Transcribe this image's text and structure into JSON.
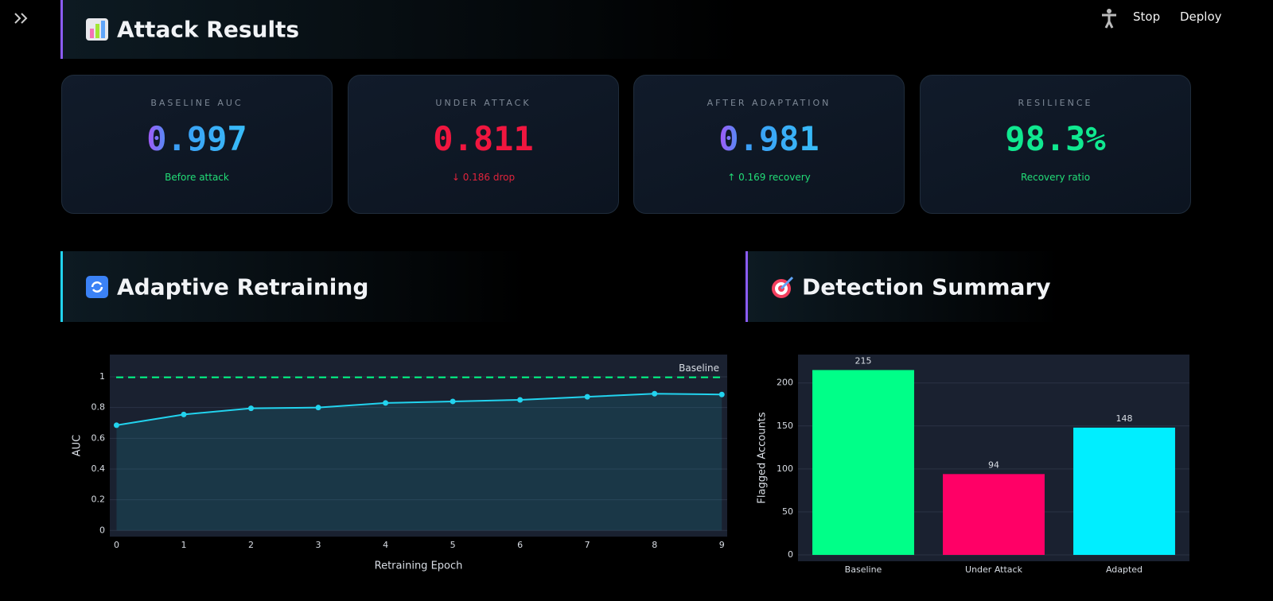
{
  "header": {
    "title": "Attack Results",
    "actions": [
      "Stop",
      "Deploy"
    ]
  },
  "metrics": [
    {
      "label": "BASELINE AUC",
      "value": "0.997",
      "note": "Before attack"
    },
    {
      "label": "UNDER ATTACK",
      "value": "0.811",
      "note": "↓ 0.186 drop"
    },
    {
      "label": "AFTER ADAPTATION",
      "value": "0.981",
      "note": "↑ 0.169 recovery"
    },
    {
      "label": "RESILIENCE",
      "value": "98.3%",
      "note": "Recovery ratio"
    }
  ],
  "sections": [
    "Adaptive Retraining",
    "Detection Summary"
  ],
  "chart_data": [
    {
      "type": "line",
      "x_label": "Retraining Epoch",
      "y_label": "AUC",
      "x": [
        0,
        1,
        2,
        3,
        4,
        5,
        6,
        7,
        8,
        9
      ],
      "series": [
        {
          "color": "#22d3ee",
          "values": [
            0.685,
            0.755,
            0.795,
            0.8,
            0.83,
            0.84,
            0.85,
            0.87,
            0.89,
            0.885
          ]
        }
      ],
      "baseline": 0.997,
      "baseline_color": "#00ff88",
      "annotation": "Baseline",
      "xlim": [
        -0.1,
        9.08
      ],
      "ylim": [
        -0.04,
        1.145
      ],
      "xticks": [
        0,
        1,
        2,
        3,
        4,
        5,
        6,
        7,
        8,
        9
      ],
      "yticks": [
        0,
        0.2,
        0.4,
        0.6,
        0.8,
        1
      ],
      "grid": true
    },
    {
      "type": "bar",
      "y_label": "Flagged Accounts",
      "categories": [
        "Baseline",
        "Under Attack",
        "Adapted"
      ],
      "values": [
        215,
        94,
        148
      ],
      "colors": [
        "#00ff88",
        "#ff0066",
        "#00eeff"
      ],
      "ylim": [
        -7.4,
        233
      ],
      "yticks": [
        0,
        50,
        100,
        150,
        200
      ],
      "grid": true
    }
  ]
}
